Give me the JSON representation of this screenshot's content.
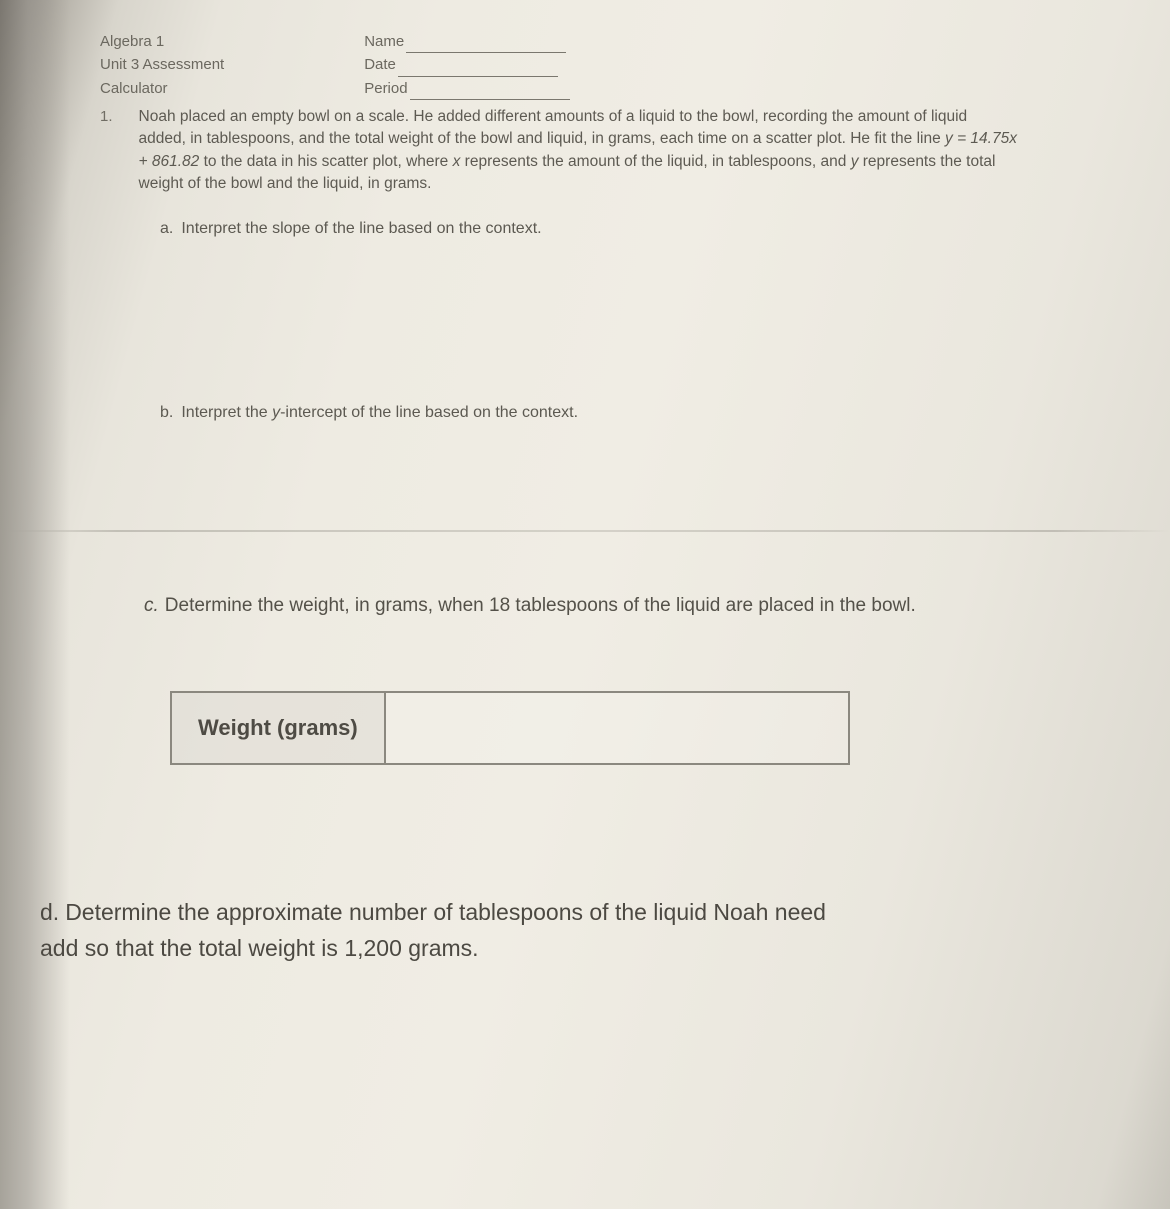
{
  "header": {
    "course": "Algebra 1",
    "unit": "Unit 3 Assessment",
    "tool": "Calculator",
    "name_label": "Name",
    "date_label": "Date",
    "period_label": "Period"
  },
  "question": {
    "number": "1.",
    "text_1": "Noah placed an empty bowl on a scale. He added different amounts of a liquid to the bowl, recording the amount of liquid added, in tablespoons, and the total weight of the bowl and liquid, in grams, each time on a scatter plot. He fit the line",
    "equation": "y = 14.75x + 861.82",
    "text_2": " to the data in his scatter plot, where ",
    "var_x": "x",
    "text_3": " represents the amount of the liquid, in tablespoons, and ",
    "var_y": "y",
    "text_4": " represents the total weight of the bowl and the liquid, in grams."
  },
  "part_a": {
    "label": "a.",
    "text": "Interpret the slope of the line based on the context."
  },
  "part_b": {
    "label": "b.",
    "prefix": "Interpret the ",
    "yint": "y",
    "suffix": "-intercept of the line based on the context."
  },
  "part_c": {
    "label": "c.",
    "text_1": "Determine the weight, in grams, when ",
    "value": "18",
    "text_2": " tablespoons of the liquid are placed in the bowl."
  },
  "answer_box": {
    "label": "Weight (grams)",
    "value": ""
  },
  "part_d": {
    "label": "d.",
    "text_1": "Determine the approximate number of tablespoons of the liquid Noah need",
    "text_2": "add so that the total weight is ",
    "value": "1,200",
    "text_3": " grams."
  },
  "colors": {
    "text": "#555249",
    "border": "#8b887f",
    "bg_light": "#eeebe2"
  },
  "typography": {
    "body_pt": 15,
    "subc_pt": 19,
    "subd_pt": 23,
    "box_label_pt": 22
  }
}
